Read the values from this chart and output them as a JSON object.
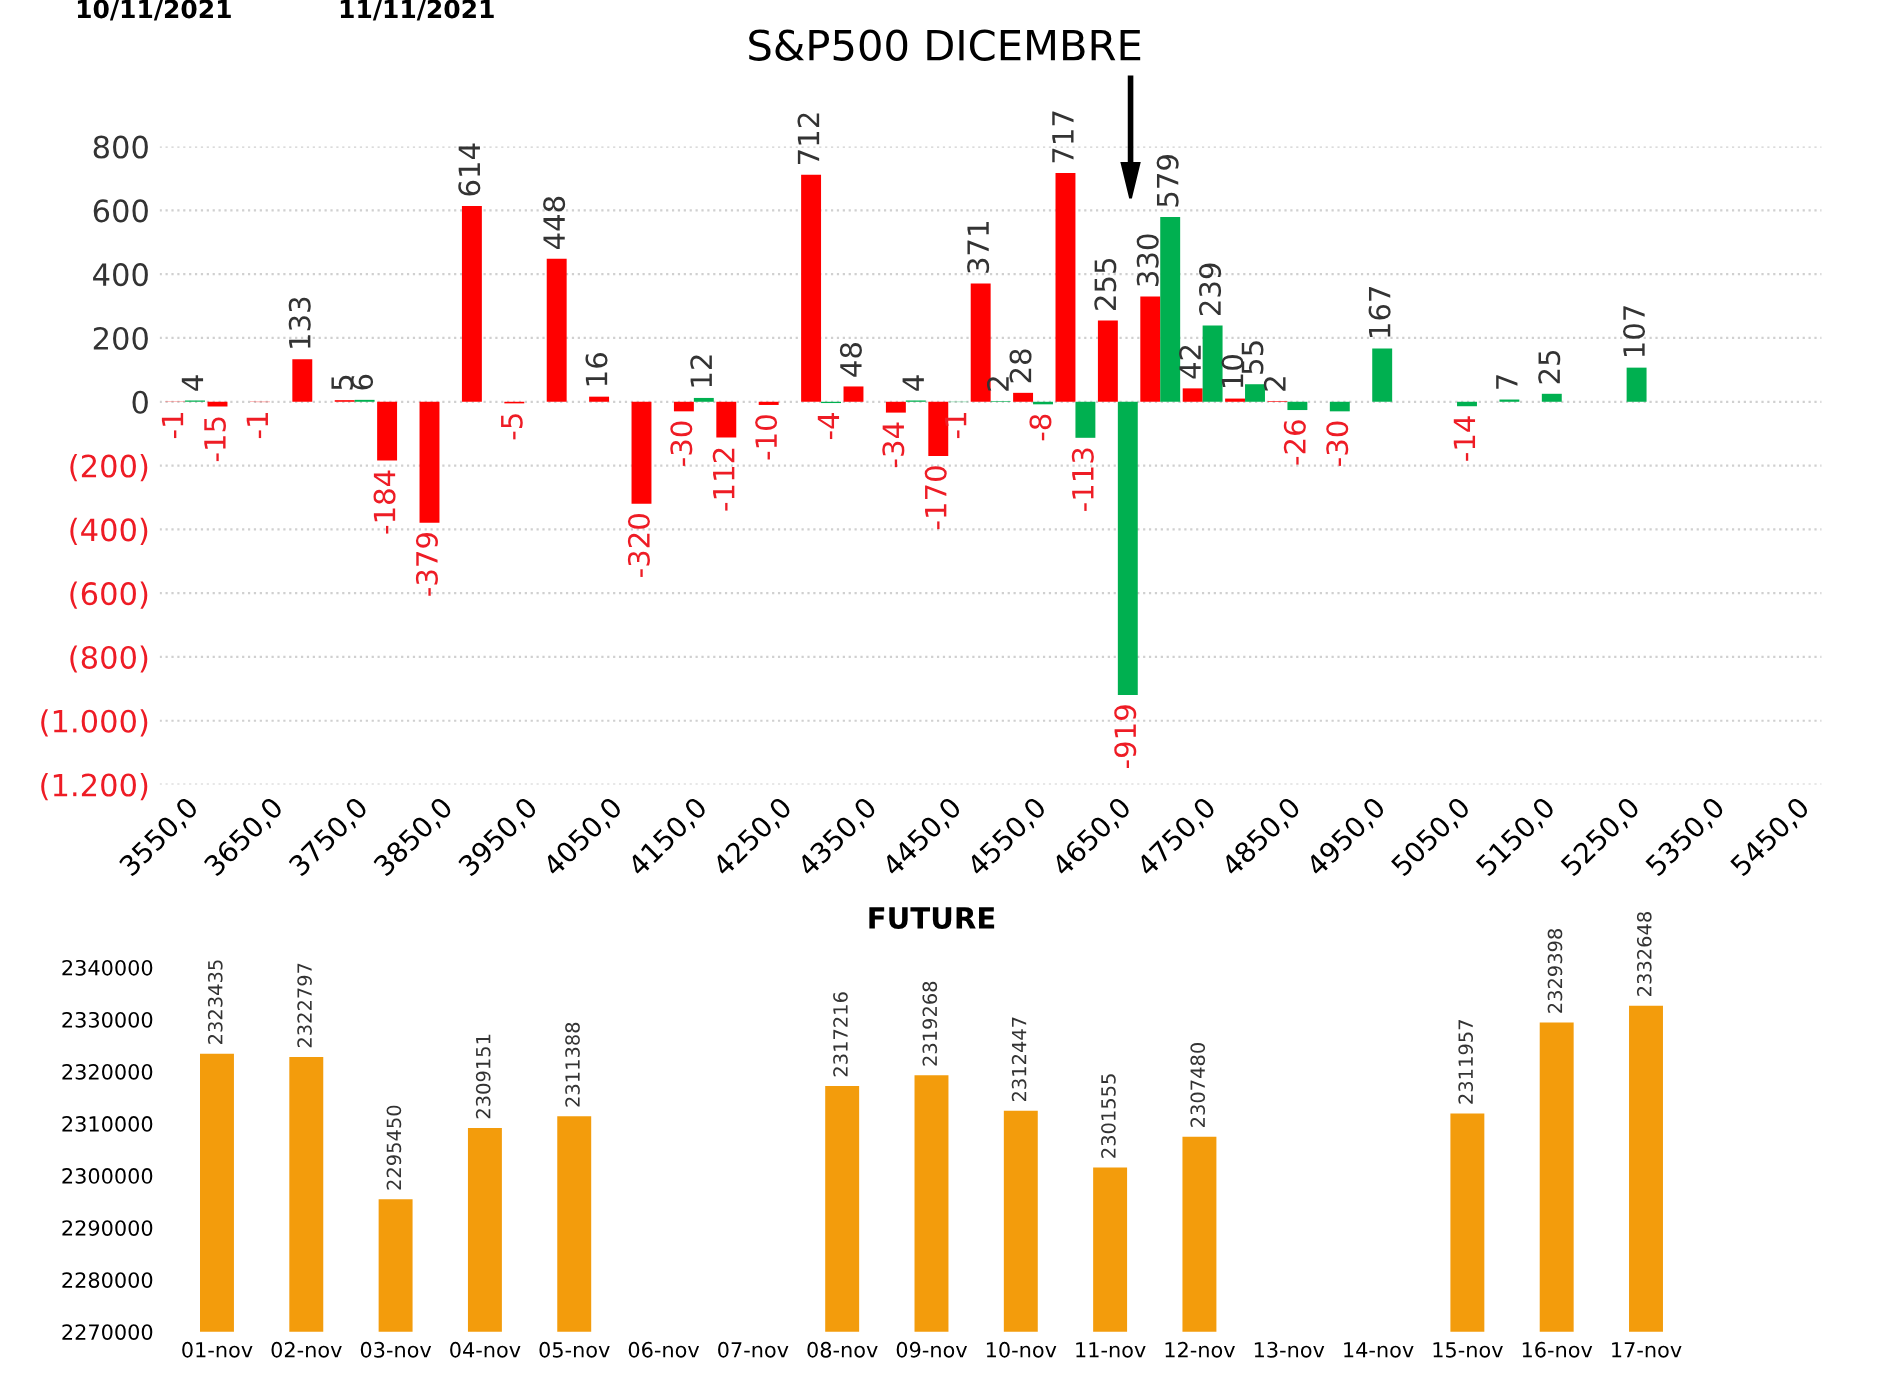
{
  "chart_data": [
    {
      "type": "bar",
      "title": "S&P500 DICEMBRE",
      "categories": [
        "3550,0",
        null,
        "3650,0",
        null,
        "3750,0",
        null,
        "3850,0",
        null,
        "3950,0",
        null,
        "4050,0",
        null,
        "4150,0",
        null,
        "4250,0",
        null,
        "4350,0",
        null,
        "4450,0",
        null,
        "4550,0",
        null,
        "4650,0",
        null,
        "4750,0",
        null,
        "4850,0",
        null,
        "4950,0",
        null,
        "5050,0",
        null,
        "5150,0",
        null,
        "5250,0",
        null,
        "5350,0",
        null,
        "5450,0"
      ],
      "series": [
        {
          "color": "#ff0000",
          "values": [
            -1,
            -15,
            -1,
            133,
            5,
            -184,
            -379,
            614,
            -5,
            448,
            16,
            -320,
            -30,
            -112,
            -10,
            712,
            48,
            -34,
            -170,
            371,
            28,
            717,
            255,
            330,
            42,
            10,
            2,
            null,
            null,
            null,
            null,
            null,
            null,
            null,
            null,
            null,
            null,
            null,
            null
          ]
        },
        {
          "color": "#00b050",
          "values": [
            4,
            null,
            null,
            null,
            6,
            null,
            null,
            null,
            null,
            null,
            null,
            null,
            12,
            null,
            null,
            -4,
            null,
            4,
            -1,
            2,
            -8,
            -113,
            -919,
            579,
            239,
            55,
            -26,
            -30,
            167,
            null,
            -14,
            7,
            25,
            null,
            107,
            null,
            null,
            null,
            null
          ]
        }
      ],
      "ylim": [
        -1200,
        800
      ],
      "yticks": [
        800,
        600,
        400,
        200,
        0,
        {
          "value": -200,
          "label": "(200)"
        },
        {
          "value": -400,
          "label": "(400)"
        },
        {
          "value": -600,
          "label": "(600)"
        },
        {
          "value": -800,
          "label": "(800)"
        },
        {
          "value": -1000,
          "label": "(1.000)"
        },
        {
          "value": -1200,
          "label": "(1.200)"
        }
      ],
      "grid": "y",
      "data_labels": true,
      "legend": false,
      "annotations": [
        "10/11/2021",
        "11/11/2021"
      ]
    },
    {
      "type": "bar",
      "title": "FUTURE",
      "categories": [
        "01-nov",
        "02-nov",
        "03-nov",
        "04-nov",
        "05-nov",
        "06-nov",
        "07-nov",
        "08-nov",
        "09-nov",
        "10-nov",
        "11-nov",
        "12-nov",
        "13-nov",
        "14-nov",
        "15-nov",
        "16-nov",
        "17-nov"
      ],
      "series": [
        {
          "color": "#f39c0c",
          "values": [
            2323435,
            2322797,
            2295450,
            2309151,
            2311388,
            null,
            null,
            2317216,
            2319268,
            2312447,
            2301555,
            2307480,
            null,
            null,
            2311957,
            2329398,
            2332648
          ]
        }
      ],
      "ylim": [
        2270000,
        2340000
      ],
      "yticks": [
        2270000,
        2280000,
        2290000,
        2300000,
        2310000,
        2320000,
        2330000,
        2340000
      ],
      "grid": false,
      "data_labels": true,
      "legend": false
    }
  ]
}
